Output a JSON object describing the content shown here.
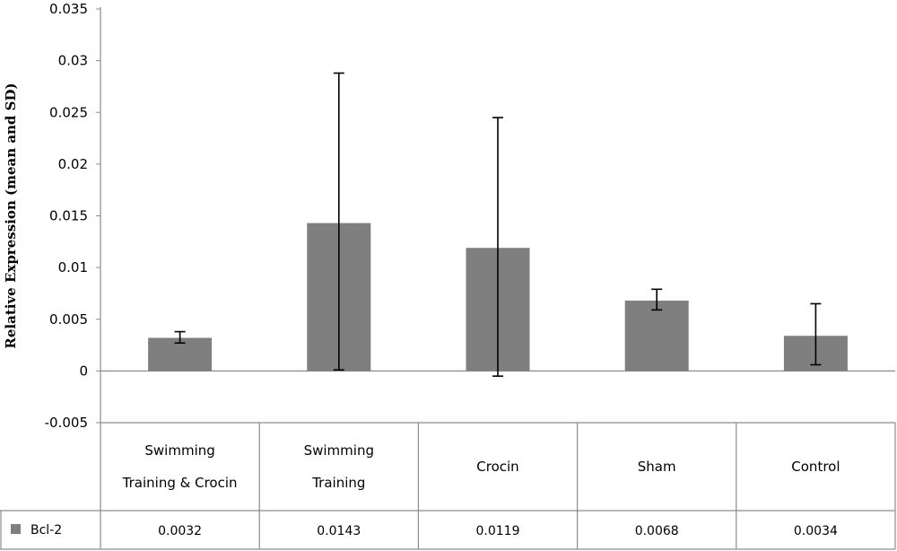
{
  "chart_data": {
    "type": "bar",
    "title": "",
    "xlabel": "",
    "ylabel": "Relative Expression (mean and SD)",
    "ylim": [
      -0.005,
      0.035
    ],
    "yticks": [
      "0.035",
      "0.03",
      "0.025",
      "0.02",
      "0.015",
      "0.01",
      "0.005",
      "0",
      "-0.005"
    ],
    "ytick_values": [
      0.035,
      0.03,
      0.025,
      0.02,
      0.015,
      0.01,
      0.005,
      0,
      -0.005
    ],
    "categories": [
      [
        "Swimming",
        "Training & Crocin"
      ],
      [
        "Swimming",
        "Training"
      ],
      [
        "Crocin"
      ],
      [
        "Sham"
      ],
      [
        "Control"
      ]
    ],
    "series": [
      {
        "name": "Bcl-2",
        "color": "#7f7f7f",
        "values": [
          0.0032,
          0.0143,
          0.0119,
          0.0068,
          0.0034
        ],
        "value_labels": [
          "0.0032",
          "0.0143",
          "0.0119",
          "0.0068",
          "0.0034"
        ],
        "error_low": [
          0.0027,
          0.0001,
          -0.0005,
          0.0059,
          0.0006
        ],
        "error_high": [
          0.0038,
          0.0288,
          0.0245,
          0.0079,
          0.0065
        ]
      }
    ],
    "legend": "data-table",
    "grid": false
  }
}
